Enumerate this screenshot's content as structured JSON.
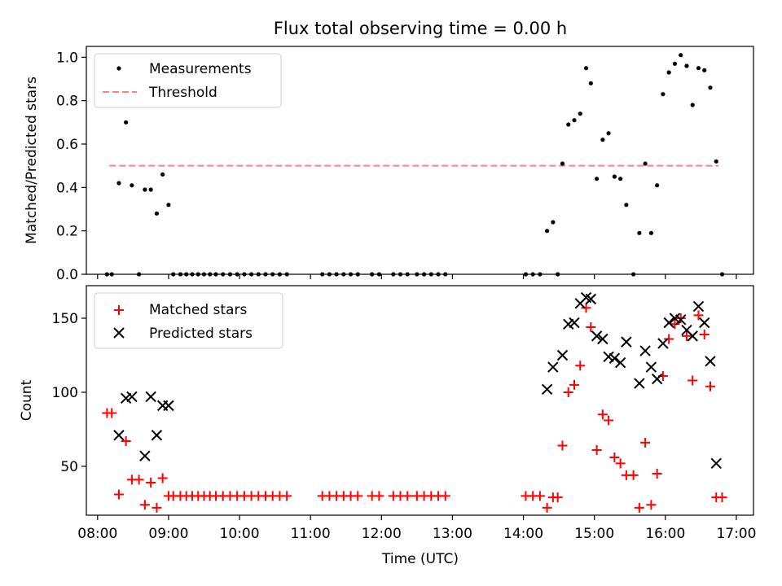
{
  "title": "Flux total observing time = 0.00 h",
  "xlabel": "Time (UTC)",
  "xticks": [
    "08:00",
    "09:00",
    "10:00",
    "11:00",
    "12:00",
    "13:00",
    "14:00",
    "15:00",
    "16:00",
    "17:00"
  ],
  "colors": {
    "measurement": "#000000",
    "threshold": "#ff8080",
    "matched": "#ff0000",
    "predicted": "#000000"
  },
  "chart_data": [
    {
      "type": "scatter",
      "ylabel": "Matched/Predicted stars",
      "xlim": [
        "08:00",
        "17:00"
      ],
      "ylim": [
        0,
        1.05
      ],
      "yticks": [
        "0.0",
        "0.2",
        "0.4",
        "0.6",
        "0.8",
        "1.0"
      ],
      "legend": {
        "placement": "top-left",
        "entries": [
          "Measurements",
          "Threshold"
        ]
      },
      "threshold": {
        "name": "Threshold",
        "value": 0.5,
        "x_range": [
          "08:10",
          "16:45"
        ]
      },
      "series": [
        {
          "name": "Measurements",
          "points": [
            [
              "08:08",
              0
            ],
            [
              "08:12",
              0
            ],
            [
              "08:18",
              0.42
            ],
            [
              "08:24",
              0.7
            ],
            [
              "08:29",
              0.41
            ],
            [
              "08:35",
              0
            ],
            [
              "08:40",
              0.39
            ],
            [
              "08:45",
              0.39
            ],
            [
              "08:50",
              0.28
            ],
            [
              "08:55",
              0.46
            ],
            [
              "09:00",
              0.32
            ],
            [
              "09:04",
              0
            ],
            [
              "09:10",
              0
            ],
            [
              "09:15",
              0
            ],
            [
              "09:20",
              0
            ],
            [
              "09:25",
              0
            ],
            [
              "09:30",
              0
            ],
            [
              "09:35",
              0
            ],
            [
              "09:40",
              0
            ],
            [
              "09:46",
              0
            ],
            [
              "09:52",
              0
            ],
            [
              "09:58",
              0
            ],
            [
              "10:04",
              0
            ],
            [
              "10:10",
              0
            ],
            [
              "10:16",
              0
            ],
            [
              "10:22",
              0
            ],
            [
              "10:28",
              0
            ],
            [
              "10:34",
              0
            ],
            [
              "10:40",
              0
            ],
            [
              "11:10",
              0
            ],
            [
              "11:16",
              0
            ],
            [
              "11:22",
              0
            ],
            [
              "11:28",
              0
            ],
            [
              "11:34",
              0
            ],
            [
              "11:40",
              0
            ],
            [
              "11:52",
              0
            ],
            [
              "11:58",
              0
            ],
            [
              "12:10",
              0
            ],
            [
              "12:16",
              0
            ],
            [
              "12:22",
              0
            ],
            [
              "12:30",
              0
            ],
            [
              "12:36",
              0
            ],
            [
              "12:42",
              0
            ],
            [
              "12:48",
              0
            ],
            [
              "12:54",
              0
            ],
            [
              "14:02",
              0
            ],
            [
              "14:08",
              0
            ],
            [
              "14:14",
              0
            ],
            [
              "14:20",
              0.2
            ],
            [
              "14:25",
              0.24
            ],
            [
              "14:29",
              0
            ],
            [
              "14:33",
              0.51
            ],
            [
              "14:38",
              0.69
            ],
            [
              "14:43",
              0.71
            ],
            [
              "14:48",
              0.74
            ],
            [
              "14:53",
              0.95
            ],
            [
              "14:57",
              0.88
            ],
            [
              "15:02",
              0.44
            ],
            [
              "15:07",
              0.62
            ],
            [
              "15:12",
              0.65
            ],
            [
              "15:17",
              0.45
            ],
            [
              "15:22",
              0.44
            ],
            [
              "15:27",
              0.32
            ],
            [
              "15:33",
              0
            ],
            [
              "15:38",
              0.19
            ],
            [
              "15:43",
              0.51
            ],
            [
              "15:48",
              0.19
            ],
            [
              "15:53",
              0.41
            ],
            [
              "15:58",
              0.83
            ],
            [
              "16:03",
              0.93
            ],
            [
              "16:08",
              0.97
            ],
            [
              "16:13",
              1.01
            ],
            [
              "16:18",
              0.96
            ],
            [
              "16:23",
              0.78
            ],
            [
              "16:28",
              0.95
            ],
            [
              "16:33",
              0.94
            ],
            [
              "16:38",
              0.86
            ],
            [
              "16:43",
              0.52
            ],
            [
              "16:48",
              0
            ]
          ]
        }
      ]
    },
    {
      "type": "scatter",
      "ylabel": "Count",
      "xlabel": "Time (UTC)",
      "xlim": [
        "08:00",
        "17:00"
      ],
      "ylim": [
        17,
        172
      ],
      "yticks": [
        "50",
        "100",
        "150"
      ],
      "legend": {
        "placement": "top-left",
        "entries": [
          "Matched stars",
          "Predicted stars"
        ]
      },
      "series": [
        {
          "name": "Matched stars",
          "marker": "+",
          "points": [
            [
              "08:08",
              86
            ],
            [
              "08:12",
              86
            ],
            [
              "08:18",
              31
            ],
            [
              "08:24",
              67
            ],
            [
              "08:29",
              41
            ],
            [
              "08:35",
              41
            ],
            [
              "08:40",
              24
            ],
            [
              "08:45",
              39
            ],
            [
              "08:50",
              22
            ],
            [
              "08:55",
              42
            ],
            [
              "09:00",
              30
            ],
            [
              "09:04",
              30
            ],
            [
              "09:10",
              30
            ],
            [
              "09:15",
              30
            ],
            [
              "09:20",
              30
            ],
            [
              "09:25",
              30
            ],
            [
              "09:30",
              30
            ],
            [
              "09:35",
              30
            ],
            [
              "09:40",
              30
            ],
            [
              "09:46",
              30
            ],
            [
              "09:52",
              30
            ],
            [
              "09:58",
              30
            ],
            [
              "10:04",
              30
            ],
            [
              "10:10",
              30
            ],
            [
              "10:16",
              30
            ],
            [
              "10:22",
              30
            ],
            [
              "10:28",
              30
            ],
            [
              "10:34",
              30
            ],
            [
              "10:40",
              30
            ],
            [
              "11:10",
              30
            ],
            [
              "11:16",
              30
            ],
            [
              "11:22",
              30
            ],
            [
              "11:28",
              30
            ],
            [
              "11:34",
              30
            ],
            [
              "11:40",
              30
            ],
            [
              "11:52",
              30
            ],
            [
              "11:58",
              30
            ],
            [
              "12:10",
              30
            ],
            [
              "12:16",
              30
            ],
            [
              "12:22",
              30
            ],
            [
              "12:30",
              30
            ],
            [
              "12:36",
              30
            ],
            [
              "12:42",
              30
            ],
            [
              "12:48",
              30
            ],
            [
              "12:54",
              30
            ],
            [
              "14:02",
              30
            ],
            [
              "14:08",
              30
            ],
            [
              "14:14",
              30
            ],
            [
              "14:20",
              22
            ],
            [
              "14:25",
              29
            ],
            [
              "14:29",
              29
            ],
            [
              "14:33",
              64
            ],
            [
              "14:38",
              100
            ],
            [
              "14:43",
              105
            ],
            [
              "14:48",
              118
            ],
            [
              "14:53",
              157
            ],
            [
              "14:57",
              144
            ],
            [
              "15:02",
              61
            ],
            [
              "15:07",
              85
            ],
            [
              "15:12",
              81
            ],
            [
              "15:17",
              56
            ],
            [
              "15:22",
              52
            ],
            [
              "15:27",
              44
            ],
            [
              "15:33",
              44
            ],
            [
              "15:38",
              22
            ],
            [
              "15:43",
              66
            ],
            [
              "15:48",
              24
            ],
            [
              "15:53",
              45
            ],
            [
              "15:58",
              111
            ],
            [
              "16:03",
              136
            ],
            [
              "16:08",
              146
            ],
            [
              "16:13",
              150
            ],
            [
              "16:18",
              138
            ],
            [
              "16:23",
              108
            ],
            [
              "16:28",
              152
            ],
            [
              "16:33",
              139
            ],
            [
              "16:38",
              104
            ],
            [
              "16:43",
              29
            ],
            [
              "16:48",
              29
            ]
          ]
        },
        {
          "name": "Predicted stars",
          "marker": "x",
          "points": [
            [
              "08:18",
              71
            ],
            [
              "08:24",
              96
            ],
            [
              "08:29",
              97
            ],
            [
              "08:40",
              57
            ],
            [
              "08:45",
              97
            ],
            [
              "08:50",
              71
            ],
            [
              "08:55",
              91
            ],
            [
              "09:00",
              91
            ],
            [
              "14:20",
              102
            ],
            [
              "14:25",
              117
            ],
            [
              "14:33",
              125
            ],
            [
              "14:38",
              146
            ],
            [
              "14:43",
              147
            ],
            [
              "14:48",
              160
            ],
            [
              "14:53",
              164
            ],
            [
              "14:57",
              163
            ],
            [
              "15:02",
              138
            ],
            [
              "15:07",
              136
            ],
            [
              "15:12",
              124
            ],
            [
              "15:17",
              123
            ],
            [
              "15:22",
              120
            ],
            [
              "15:27",
              134
            ],
            [
              "15:38",
              106
            ],
            [
              "15:43",
              128
            ],
            [
              "15:48",
              117
            ],
            [
              "15:53",
              109
            ],
            [
              "15:58",
              133
            ],
            [
              "16:03",
              147
            ],
            [
              "16:08",
              150
            ],
            [
              "16:13",
              149
            ],
            [
              "16:18",
              142
            ],
            [
              "16:23",
              138
            ],
            [
              "16:28",
              158
            ],
            [
              "16:33",
              147
            ],
            [
              "16:38",
              121
            ],
            [
              "16:43",
              52
            ]
          ]
        }
      ]
    }
  ]
}
